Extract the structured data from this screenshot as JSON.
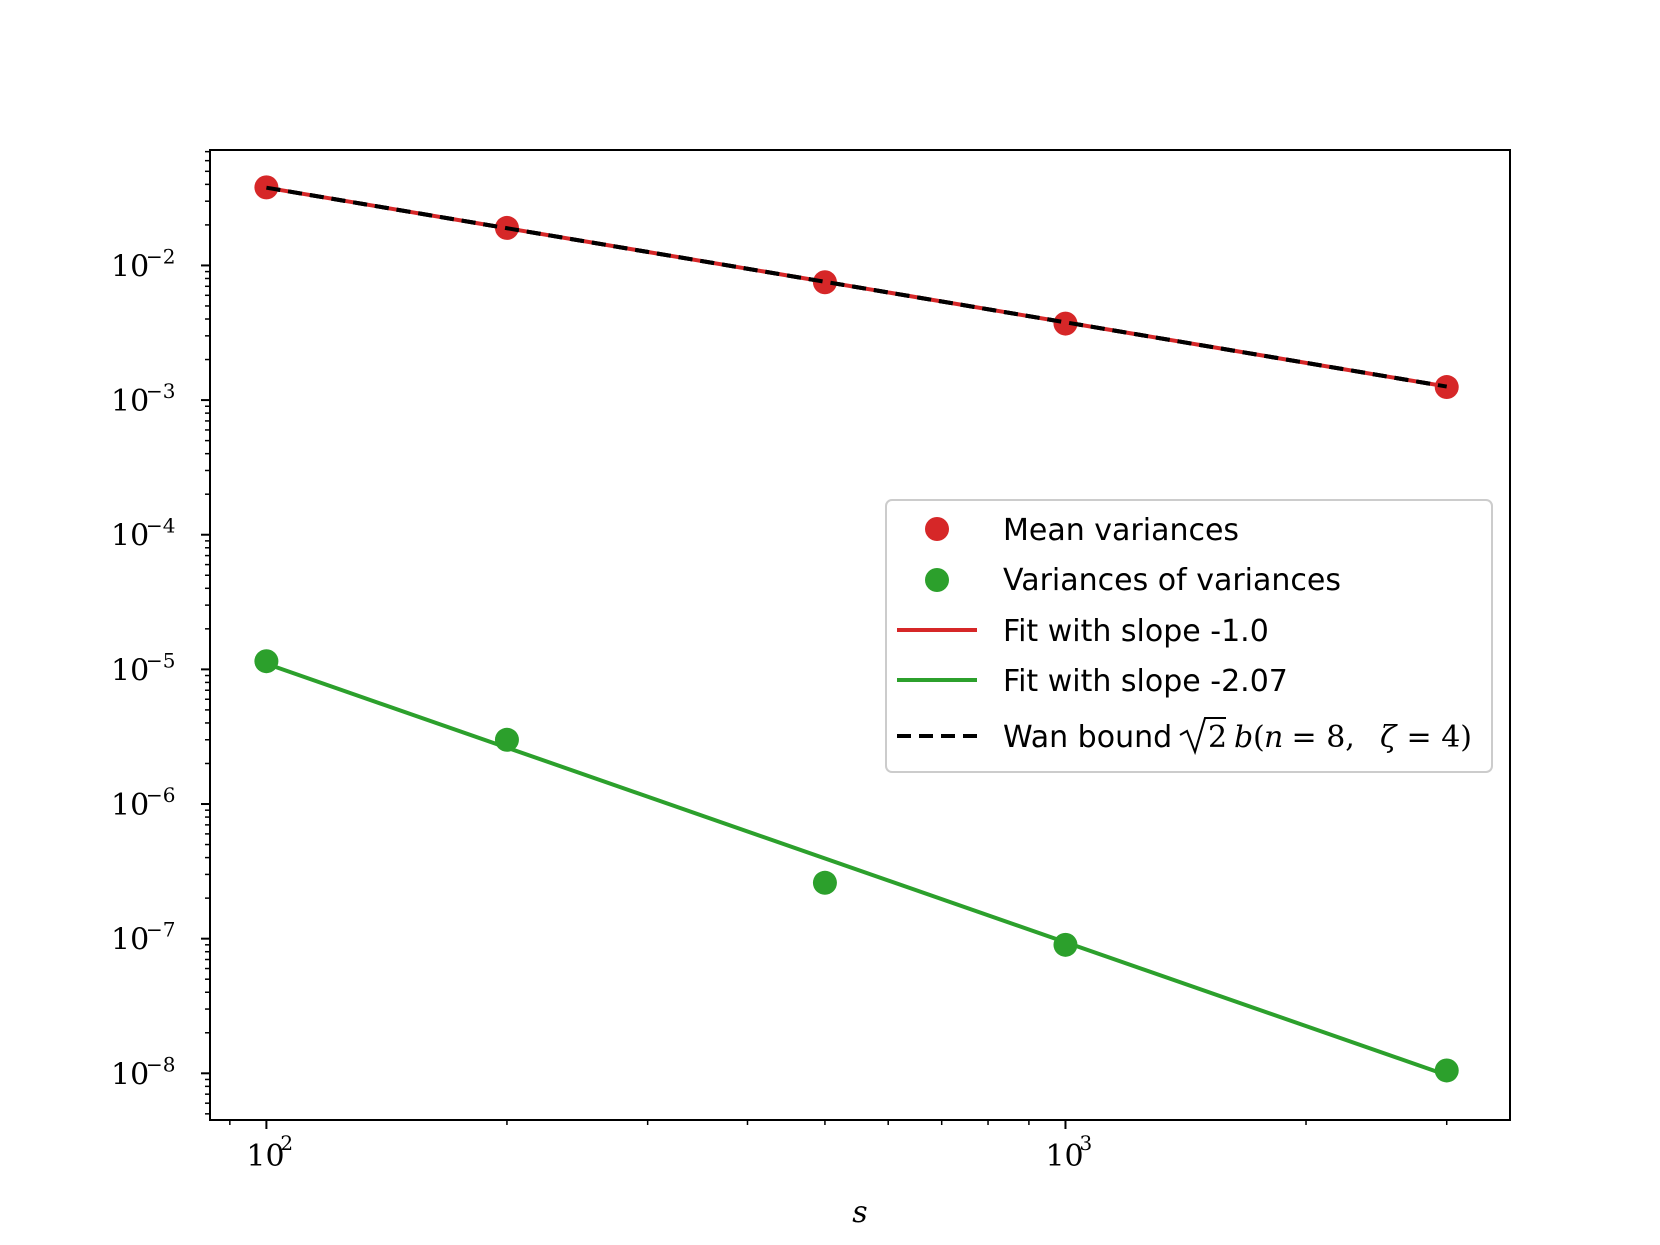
{
  "chart_data": {
    "type": "scatter",
    "xlabel": "s",
    "x_scale": "log",
    "y_scale": "log",
    "xlim": [
      85,
      3600
    ],
    "ylim": [
      4.5e-09,
      0.072
    ],
    "x_ticks": [
      {
        "value": 100,
        "base": "10",
        "exp": "2"
      },
      {
        "value": 1000,
        "base": "10",
        "exp": "3"
      }
    ],
    "y_ticks": [
      {
        "value": 0.01,
        "base": "10",
        "exp": "−2"
      },
      {
        "value": 0.001,
        "base": "10",
        "exp": "−3"
      },
      {
        "value": 0.0001,
        "base": "10",
        "exp": "−4"
      },
      {
        "value": 1e-05,
        "base": "10",
        "exp": "−5"
      },
      {
        "value": 1e-06,
        "base": "10",
        "exp": "−6"
      },
      {
        "value": 1e-07,
        "base": "10",
        "exp": "−7"
      },
      {
        "value": 1e-08,
        "base": "10",
        "exp": "−8"
      }
    ],
    "x": [
      100,
      200,
      500,
      1000,
      3000
    ],
    "series": [
      {
        "name": "Mean variances",
        "kind": "scatter",
        "color": "#d62728",
        "values": [
          0.038,
          0.019,
          0.0075,
          0.0037,
          0.00125
        ]
      },
      {
        "name": "Variances of variances",
        "kind": "scatter",
        "color": "#2ca02c",
        "values": [
          1.15e-05,
          3e-06,
          2.6e-07,
          9e-08,
          1.05e-08
        ]
      },
      {
        "name": "Fit with slope -1.0",
        "kind": "line",
        "color": "#d62728",
        "x_range": [
          100,
          3000
        ],
        "y_range": [
          0.0378,
          0.00126
        ]
      },
      {
        "name": "Fit with slope -2.07",
        "kind": "line",
        "color": "#2ca02c",
        "x_range": [
          100,
          3000
        ],
        "y_range": [
          1.1e-05,
          9.7e-09
        ]
      },
      {
        "name": "Wan bound",
        "kind": "dashed-line",
        "color": "#000000",
        "x_range": [
          100,
          3000
        ],
        "y_range": [
          0.0378,
          0.00126
        ]
      }
    ],
    "legend": {
      "placement": "center-right",
      "entries": [
        {
          "label": "Mean variances",
          "marker": "dot",
          "color": "#d62728"
        },
        {
          "label": "Variances of variances",
          "marker": "dot",
          "color": "#2ca02c"
        },
        {
          "label": "Fit with slope -1.0",
          "marker": "line",
          "color": "#d62728"
        },
        {
          "label": "Fit with slope -2.07",
          "marker": "line",
          "color": "#2ca02c"
        },
        {
          "label": "Wan bound",
          "marker": "dash",
          "color": "#000000",
          "math": {
            "sqrt_arg": "2",
            "func": "b",
            "open": "(",
            "n": "n",
            "eq1": " = 8, ",
            "zeta": "ζ",
            "eq2": " = 4)"
          }
        }
      ]
    }
  }
}
